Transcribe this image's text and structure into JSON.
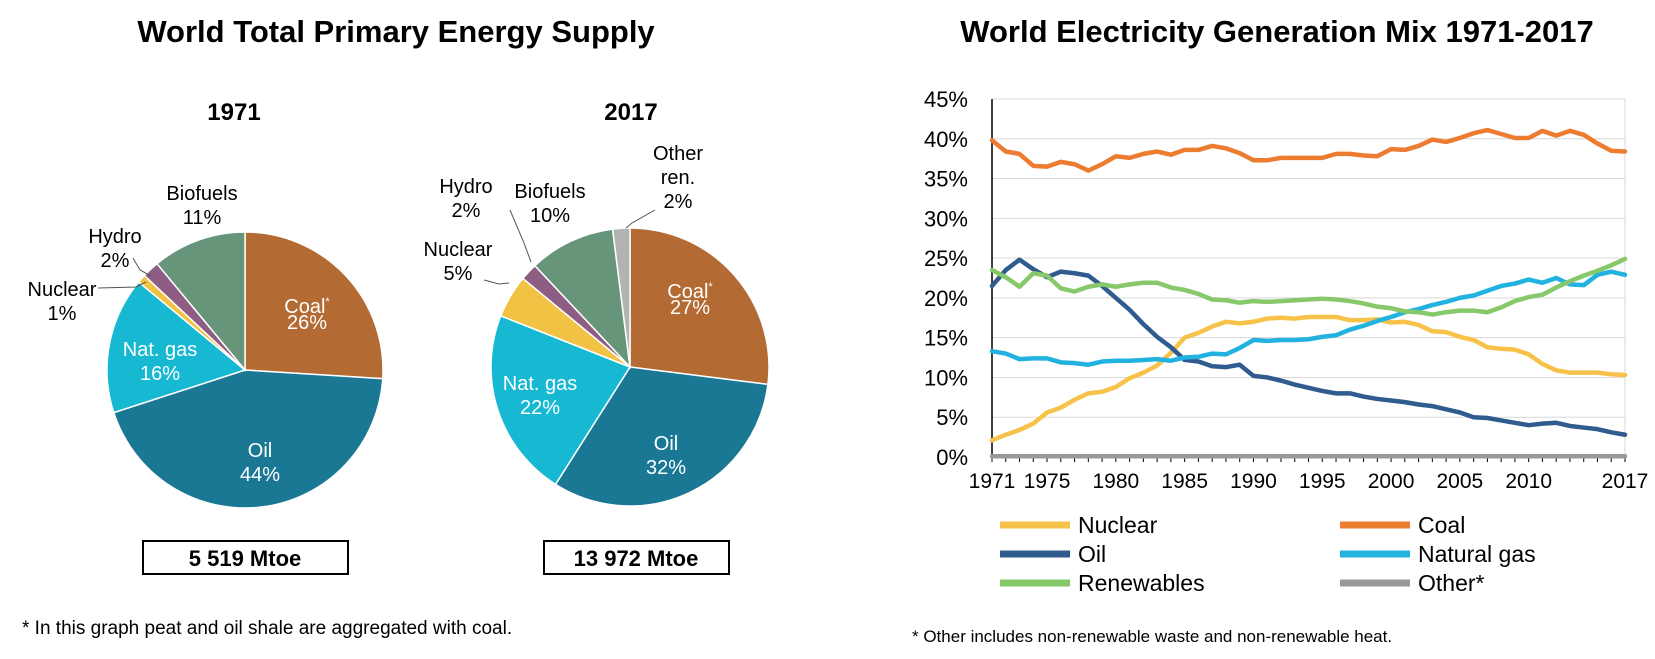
{
  "left_title": "World Total Primary Energy Supply",
  "right_title": "World Electricity Generation Mix 1971-2017",
  "left_footnote": "* In this graph peat and oil shale are aggregated with coal.",
  "right_footnote": "* Other includes non-renewable waste and non-renewable heat.",
  "colors": {
    "coal_pie": "#b36a33",
    "oil_pie": "#1a7895",
    "gas_pie": "#17b8d2",
    "nuclear_pie": "#f2c244",
    "hydro_pie": "#8e5d83",
    "biofuels_pie": "#66957a",
    "other_pie": "#b3b3b3",
    "nuclear_line": "#f7c24a",
    "coal_line": "#ec7c30",
    "oil_line": "#2f5b8f",
    "gas_line": "#22b2e0",
    "ren_line": "#86c86a",
    "other_line": "#999999"
  },
  "chart_data": [
    {
      "type": "pie",
      "title": "1971",
      "total": "5 519 Mtoe",
      "slices": [
        {
          "name": "Coal",
          "value": 26,
          "label": "Coal*",
          "pct": "26%"
        },
        {
          "name": "Oil",
          "value": 44,
          "label": "Oil",
          "pct": "44%"
        },
        {
          "name": "Nat. gas",
          "value": 16,
          "label": "Nat. gas",
          "pct": "16%"
        },
        {
          "name": "Nuclear",
          "value": 1,
          "label": "Nuclear",
          "pct": "1%"
        },
        {
          "name": "Hydro",
          "value": 2,
          "label": "Hydro",
          "pct": "2%"
        },
        {
          "name": "Biofuels",
          "value": 11,
          "label": "Biofuels",
          "pct": "11%"
        }
      ]
    },
    {
      "type": "pie",
      "title": "2017",
      "total": "13 972 Mtoe",
      "slices": [
        {
          "name": "Coal",
          "value": 27,
          "label": "Coal*",
          "pct": "27%"
        },
        {
          "name": "Oil",
          "value": 32,
          "label": "Oil",
          "pct": "32%"
        },
        {
          "name": "Nat. gas",
          "value": 22,
          "label": "Nat. gas",
          "pct": "22%"
        },
        {
          "name": "Nuclear",
          "value": 5,
          "label": "Nuclear",
          "pct": "5%"
        },
        {
          "name": "Hydro",
          "value": 2,
          "label": "Hydro",
          "pct": "2%"
        },
        {
          "name": "Biofuels",
          "value": 10,
          "label": "Biofuels",
          "pct": "10%"
        },
        {
          "name": "Other ren.",
          "value": 2,
          "label": "Other ren.",
          "pct": "2%"
        }
      ]
    },
    {
      "type": "line",
      "title": "World Electricity Generation Mix 1971-2017",
      "xlim": [
        1971,
        2017
      ],
      "ylim": [
        0,
        45
      ],
      "yticks": [
        "0%",
        "5%",
        "10%",
        "15%",
        "20%",
        "25%",
        "30%",
        "35%",
        "40%",
        "45%"
      ],
      "xticks": [
        "1971",
        "1975",
        "1980",
        "1985",
        "1990",
        "1995",
        "2000",
        "2005",
        "2010",
        "2017"
      ],
      "grid": true,
      "legend_position": "bottom",
      "x": [
        1971,
        1972,
        1973,
        1974,
        1975,
        1976,
        1977,
        1978,
        1979,
        1980,
        1981,
        1982,
        1983,
        1984,
        1985,
        1986,
        1987,
        1988,
        1989,
        1990,
        1991,
        1992,
        1993,
        1994,
        1995,
        1996,
        1997,
        1998,
        1999,
        2000,
        2001,
        2002,
        2003,
        2004,
        2005,
        2006,
        2007,
        2008,
        2009,
        2010,
        2011,
        2012,
        2013,
        2014,
        2015,
        2016,
        2017
      ],
      "series": [
        {
          "name": "Nuclear",
          "values": [
            2.1,
            2.8,
            3.4,
            4.2,
            5.6,
            6.2,
            7.2,
            8.0,
            8.2,
            8.8,
            9.9,
            10.6,
            11.5,
            13.1,
            15.0,
            15.6,
            16.4,
            17.0,
            16.8,
            17.0,
            17.4,
            17.5,
            17.4,
            17.6,
            17.6,
            17.6,
            17.2,
            17.2,
            17.3,
            16.9,
            17.0,
            16.6,
            15.8,
            15.7,
            15.1,
            14.7,
            13.8,
            13.6,
            13.5,
            12.9,
            11.7,
            10.9,
            10.6,
            10.6,
            10.6,
            10.4,
            10.3
          ]
        },
        {
          "name": "Coal",
          "values": [
            39.8,
            38.4,
            38.1,
            36.6,
            36.5,
            37.1,
            36.8,
            36.0,
            36.8,
            37.8,
            37.6,
            38.1,
            38.4,
            38.0,
            38.6,
            38.6,
            39.1,
            38.8,
            38.2,
            37.3,
            37.3,
            37.6,
            37.6,
            37.6,
            37.6,
            38.1,
            38.1,
            37.9,
            37.8,
            38.7,
            38.6,
            39.1,
            39.9,
            39.6,
            40.1,
            40.7,
            41.1,
            40.6,
            40.1,
            40.1,
            41.0,
            40.4,
            41.0,
            40.5,
            39.4,
            38.5,
            38.4
          ]
        },
        {
          "name": "Oil",
          "values": [
            21.5,
            23.5,
            24.8,
            23.6,
            22.6,
            23.3,
            23.1,
            22.8,
            21.5,
            20.0,
            18.5,
            16.7,
            15.1,
            13.8,
            12.2,
            12.0,
            11.4,
            11.3,
            11.6,
            10.2,
            10.0,
            9.6,
            9.1,
            8.7,
            8.3,
            8.0,
            8.0,
            7.6,
            7.3,
            7.1,
            6.9,
            6.6,
            6.4,
            6.0,
            5.6,
            5.0,
            4.9,
            4.6,
            4.3,
            4.0,
            4.2,
            4.3,
            3.9,
            3.7,
            3.5,
            3.1,
            2.8
          ]
        },
        {
          "name": "Natural gas",
          "values": [
            13.3,
            13.0,
            12.3,
            12.4,
            12.4,
            11.9,
            11.8,
            11.6,
            12.0,
            12.1,
            12.1,
            12.2,
            12.3,
            12.1,
            12.5,
            12.6,
            13.0,
            12.9,
            13.7,
            14.7,
            14.6,
            14.7,
            14.7,
            14.8,
            15.1,
            15.3,
            16.0,
            16.5,
            17.1,
            17.6,
            18.2,
            18.6,
            19.1,
            19.5,
            20.0,
            20.3,
            20.9,
            21.5,
            21.8,
            22.3,
            21.9,
            22.5,
            21.7,
            21.6,
            22.9,
            23.3,
            22.9
          ]
        },
        {
          "name": "Renewables",
          "values": [
            23.5,
            22.6,
            21.4,
            23.1,
            22.8,
            21.2,
            20.8,
            21.4,
            21.7,
            21.4,
            21.7,
            21.9,
            21.9,
            21.3,
            21.0,
            20.5,
            19.8,
            19.7,
            19.4,
            19.6,
            19.5,
            19.6,
            19.7,
            19.8,
            19.9,
            19.8,
            19.6,
            19.3,
            18.9,
            18.7,
            18.3,
            18.2,
            17.9,
            18.2,
            18.4,
            18.4,
            18.2,
            18.8,
            19.6,
            20.1,
            20.4,
            21.3,
            22.1,
            22.8,
            23.4,
            24.1,
            24.9
          ]
        },
        {
          "name": "Other*",
          "values": [
            0.1,
            0.1,
            0.1,
            0.1,
            0.1,
            0.1,
            0.1,
            0.1,
            0.1,
            0.1,
            0.1,
            0.1,
            0.1,
            0.1,
            0.1,
            0.1,
            0.1,
            0.1,
            0.1,
            0.1,
            0.1,
            0.1,
            0.1,
            0.1,
            0.1,
            0.1,
            0.1,
            0.1,
            0.1,
            0.1,
            0.1,
            0.1,
            0.1,
            0.1,
            0.1,
            0.1,
            0.1,
            0.1,
            0.1,
            0.1,
            0.1,
            0.1,
            0.1,
            0.1,
            0.1,
            0.1,
            0.1
          ]
        }
      ]
    }
  ]
}
